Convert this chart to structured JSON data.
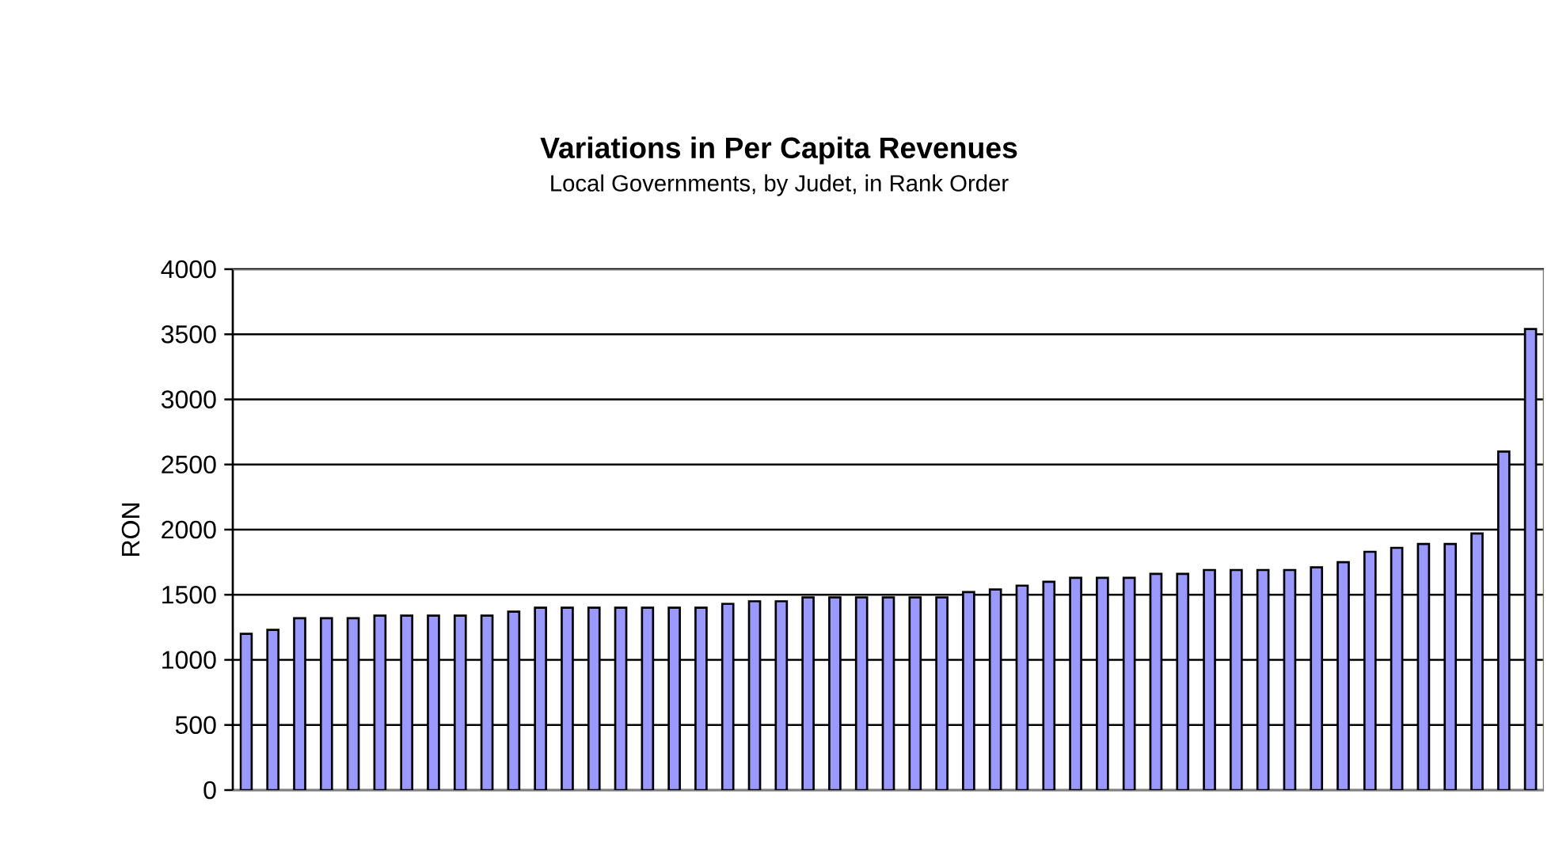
{
  "chart_data": {
    "type": "bar",
    "title": "Variations in Per Capita Revenues",
    "subtitle": "Local Governments, by Judet, in Rank Order",
    "ylabel": "RON",
    "categories": [
      null,
      null,
      null,
      null,
      null,
      null,
      null,
      null,
      null,
      null,
      null,
      null,
      null,
      null,
      null,
      null,
      null,
      null,
      null,
      null,
      null,
      null,
      null,
      null,
      null,
      null,
      null,
      null,
      null,
      null,
      null,
      null,
      null,
      null,
      null,
      null,
      null,
      null,
      null,
      null,
      null,
      null,
      null,
      null,
      null,
      null,
      null,
      null,
      null
    ],
    "values": [
      1200,
      1230,
      1320,
      1320,
      1320,
      1340,
      1340,
      1340,
      1340,
      1340,
      1370,
      1400,
      1400,
      1400,
      1400,
      1400,
      1400,
      1400,
      1430,
      1450,
      1450,
      1480,
      1480,
      1480,
      1480,
      1480,
      1480,
      1520,
      1540,
      1570,
      1600,
      1630,
      1630,
      1630,
      1660,
      1660,
      1690,
      1690,
      1690,
      1690,
      1710,
      1750,
      1830,
      1860,
      1890,
      1890,
      1970,
      2600,
      3540
    ],
    "color": "#9999ff",
    "ylim": [
      0,
      4000
    ],
    "yticks": [
      0,
      500,
      1000,
      1500,
      2000,
      2500,
      3000,
      3500,
      4000
    ],
    "grid": "y",
    "tick_labels": "y"
  }
}
